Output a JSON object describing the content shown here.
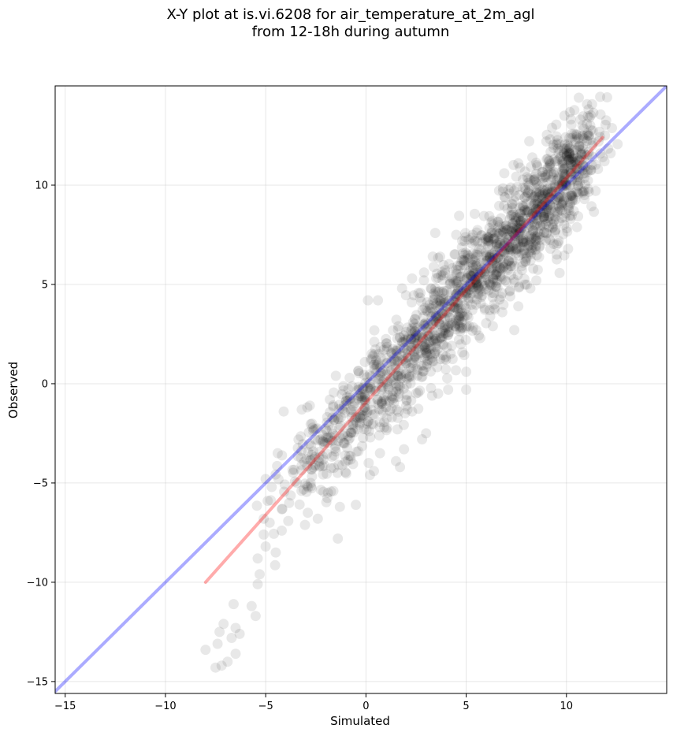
{
  "chart_data": {
    "type": "scatter",
    "title_line1": "X-Y plot at is.vi.6208 for air_temperature_at_2m_agl",
    "title_line2": "from 12-18h during autumn",
    "xlabel": "Simulated",
    "ylabel": "Observed",
    "xlim": [
      -15.5,
      15
    ],
    "ylim": [
      -15.6,
      15
    ],
    "xticks": [
      -15,
      -10,
      -5,
      0,
      5,
      10
    ],
    "xtick_labels": [
      "−15",
      "−10",
      "−5",
      "0",
      "5",
      "10"
    ],
    "yticks": [
      -15,
      -10,
      -5,
      0,
      5,
      10
    ],
    "ytick_labels": [
      "−15",
      "−10",
      "−5",
      "0",
      "5",
      "10"
    ],
    "grid": true,
    "identity_line": {
      "color": "#0000ff",
      "alpha": 0.33,
      "x": [
        -15.5,
        15
      ],
      "y": [
        -15.5,
        15
      ]
    },
    "fit_line": {
      "color": "#ff0000",
      "alpha": 0.33,
      "x": [
        -8.0,
        11.8
      ],
      "y": [
        -10.0,
        12.4
      ]
    },
    "marker_color": "#000000",
    "marker_alpha": 0.09,
    "outlier_points": [
      [
        -8.0,
        -13.4
      ],
      [
        -7.5,
        -14.3
      ],
      [
        -7.2,
        -14.2
      ],
      [
        -6.9,
        -14.0
      ],
      [
        -6.7,
        -12.8
      ],
      [
        -6.5,
        -13.6
      ],
      [
        -6.5,
        -12.3
      ],
      [
        -6.3,
        -12.6
      ],
      [
        -7.4,
        -13.1
      ],
      [
        -7.3,
        -12.5
      ],
      [
        -7.1,
        -12.1
      ],
      [
        -6.6,
        -11.1
      ],
      [
        -5.7,
        -11.2
      ],
      [
        -5.5,
        -11.7
      ],
      [
        -5.4,
        -10.1
      ],
      [
        -5.3,
        -9.6
      ],
      [
        -5.4,
        -8.8
      ],
      [
        -5.0,
        -8.2
      ],
      [
        -4.5,
        -8.5
      ],
      [
        -5.1,
        -7.6
      ],
      [
        -4.2,
        -7.4
      ],
      [
        -4.8,
        -7.0
      ],
      [
        -5.1,
        -6.8
      ],
      [
        -4.9,
        -5.9
      ],
      [
        -4.7,
        -5.2
      ],
      [
        -5.0,
        -4.8
      ],
      [
        -1.4,
        -7.8
      ],
      [
        -1.3,
        -6.2
      ],
      [
        -0.5,
        -6.1
      ],
      [
        -2.4,
        -6.8
      ],
      [
        -2.9,
        -6.5
      ],
      [
        -4.1,
        -1.4
      ],
      [
        -3.2,
        -1.3
      ],
      [
        -2.8,
        -1.1
      ],
      [
        -4.4,
        -3.5
      ],
      [
        -1.8,
        -0.8
      ],
      [
        -1.5,
        0.4
      ],
      [
        0.1,
        4.2
      ],
      [
        0.6,
        4.2
      ],
      [
        1.8,
        4.8
      ],
      [
        2.3,
        5.3
      ],
      [
        2.9,
        5.6
      ],
      [
        3.7,
        6.4
      ],
      [
        4.5,
        7.5
      ],
      [
        6.9,
        10.6
      ],
      [
        7.6,
        11.1
      ],
      [
        8.3,
        11.4
      ],
      [
        9.0,
        12.2
      ],
      [
        9.9,
        13.5
      ],
      [
        10.7,
        13.3
      ],
      [
        10.8,
        13.0
      ],
      [
        11.6,
        12.2
      ],
      [
        11.9,
        11.2
      ],
      [
        10.9,
        9.3
      ],
      [
        10.2,
        8.3
      ],
      [
        9.2,
        6.8
      ],
      [
        8.5,
        5.2
      ],
      [
        8.2,
        4.8
      ],
      [
        7.6,
        3.9
      ],
      [
        7.2,
        4.4
      ],
      [
        6.8,
        3.6
      ],
      [
        6.4,
        3.8
      ],
      [
        5.5,
        2.7
      ],
      [
        5.7,
        2.3
      ],
      [
        7.4,
        2.7
      ],
      [
        5.0,
        0.6
      ],
      [
        5.0,
        -0.3
      ],
      [
        4.1,
        -0.3
      ],
      [
        3.3,
        -0.6
      ],
      [
        2.3,
        -1.4
      ],
      [
        3.0,
        -2.5
      ],
      [
        2.8,
        -2.8
      ],
      [
        1.9,
        -3.3
      ],
      [
        1.5,
        -3.9
      ],
      [
        1.7,
        -4.2
      ],
      [
        0.4,
        -4.4
      ],
      [
        0.2,
        -4.6
      ],
      [
        0.7,
        -3.5
      ],
      [
        2.9,
        1.3
      ],
      [
        3.6,
        -0.5
      ]
    ],
    "cloud_samples": 1700,
    "cloud_x_range": [
      -4.5,
      11.0
    ],
    "cloud_spread": 1.3
  }
}
